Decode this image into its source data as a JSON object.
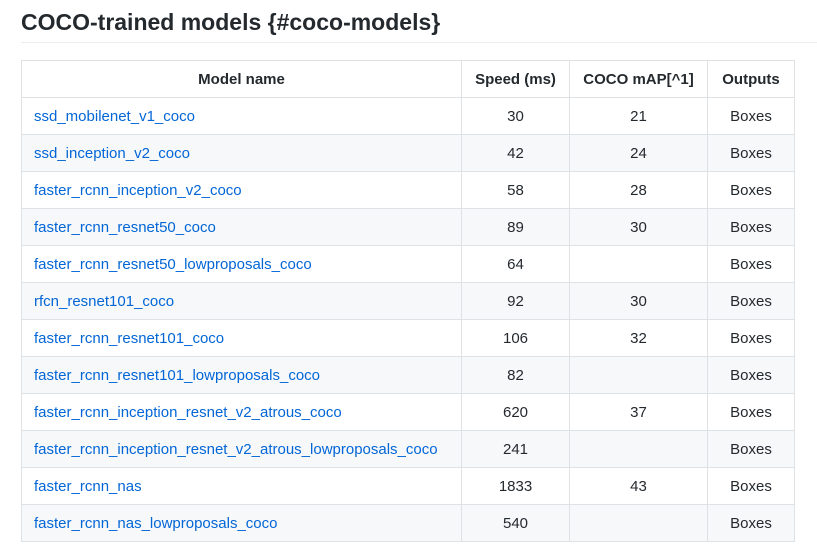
{
  "heading": "COCO-trained models {#coco-models}",
  "table": {
    "headers": {
      "name": "Model name",
      "speed": "Speed (ms)",
      "map": "COCO mAP[^1]",
      "outputs": "Outputs"
    },
    "rows": [
      {
        "name": "ssd_mobilenet_v1_coco",
        "speed": "30",
        "map": "21",
        "outputs": "Boxes"
      },
      {
        "name": "ssd_inception_v2_coco",
        "speed": "42",
        "map": "24",
        "outputs": "Boxes"
      },
      {
        "name": "faster_rcnn_inception_v2_coco",
        "speed": "58",
        "map": "28",
        "outputs": "Boxes"
      },
      {
        "name": "faster_rcnn_resnet50_coco",
        "speed": "89",
        "map": "30",
        "outputs": "Boxes"
      },
      {
        "name": "faster_rcnn_resnet50_lowproposals_coco",
        "speed": "64",
        "map": "",
        "outputs": "Boxes"
      },
      {
        "name": "rfcn_resnet101_coco",
        "speed": "92",
        "map": "30",
        "outputs": "Boxes"
      },
      {
        "name": "faster_rcnn_resnet101_coco",
        "speed": "106",
        "map": "32",
        "outputs": "Boxes"
      },
      {
        "name": "faster_rcnn_resnet101_lowproposals_coco",
        "speed": "82",
        "map": "",
        "outputs": "Boxes"
      },
      {
        "name": "faster_rcnn_inception_resnet_v2_atrous_coco",
        "speed": "620",
        "map": "37",
        "outputs": "Boxes"
      },
      {
        "name": "faster_rcnn_inception_resnet_v2_atrous_lowproposals_coco",
        "speed": "241",
        "map": "",
        "outputs": "Boxes"
      },
      {
        "name": "faster_rcnn_nas",
        "speed": "1833",
        "map": "43",
        "outputs": "Boxes"
      },
      {
        "name": "faster_rcnn_nas_lowproposals_coco",
        "speed": "540",
        "map": "",
        "outputs": "Boxes"
      }
    ]
  },
  "colors": {
    "link": "#0366d6",
    "text": "#24292e",
    "border": "#dfe2e5",
    "stripe": "#f6f8fa"
  }
}
